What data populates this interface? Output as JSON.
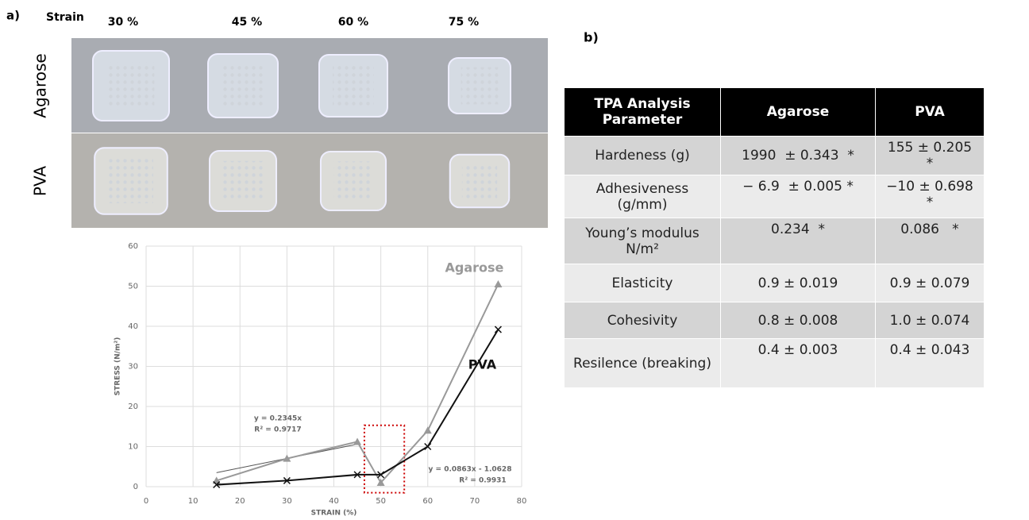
{
  "panel_a": {
    "label": "a)",
    "strain_label": "Strain",
    "strains": [
      "30 %",
      "45 %",
      "60 %",
      "75 %"
    ],
    "rows": [
      "Agarose",
      "PVA"
    ]
  },
  "chart_data": {
    "type": "line",
    "x_label": "STRAIN (%)",
    "y_label": "STRESS (N/m²)",
    "xlim": [
      0,
      80
    ],
    "xticks": [
      0,
      10,
      20,
      30,
      40,
      50,
      60,
      70,
      80
    ],
    "ylim": [
      0,
      60
    ],
    "yticks": [
      0,
      10,
      20,
      30,
      40,
      50,
      60
    ],
    "grid": true,
    "series": [
      {
        "name": "Agarose",
        "color": "#999999",
        "marker": "triangle",
        "x": [
          15,
          30,
          45,
          50,
          60,
          75
        ],
        "values": [
          1.5,
          7,
          11.2,
          1,
          14,
          50.5
        ]
      },
      {
        "name": "PVA",
        "color": "#111111",
        "marker": "x",
        "x": [
          15,
          30,
          45,
          50,
          60,
          75
        ],
        "values": [
          0.5,
          1.5,
          3,
          3,
          10,
          39.2
        ]
      }
    ],
    "trendlines": [
      {
        "color": "#555555",
        "x": [
          15,
          45
        ],
        "values": [
          3.5,
          10.6
        ]
      },
      {
        "color": "#aaaaaa",
        "x": [
          15,
          45
        ],
        "values": [
          0.3,
          2.8
        ]
      }
    ],
    "annotations": [
      "y = 0.2345x",
      "R² = 0.9717",
      "y = 0.0863x - 1.0628",
      "R² = 0.9931"
    ],
    "highlight_box": {
      "x": [
        46.5,
        55
      ],
      "y": [
        -1.5,
        15.3
      ],
      "color": "#cc0000"
    }
  },
  "panel_b": {
    "label": "b)"
  },
  "table": {
    "header": [
      "TPA Analysis Parameter",
      "Agarose",
      "PVA"
    ],
    "rows": [
      [
        "Hardeness (g)",
        "1990  ± 0.343  *",
        "155 ± 0.205 *"
      ],
      [
        "Adhesiveness (g/mm)",
        "− 6.9  ± 0.005 *",
        "−10 ± 0.698 *"
      ],
      [
        "Young’s modulus N/m²",
        "0.234  *",
        "0.086   *"
      ],
      [
        "Elasticity",
        "0.9 ± 0.019",
        "0.9 ± 0.079"
      ],
      [
        "Cohesivity",
        "0.8 ± 0.008",
        "1.0 ± 0.074"
      ],
      [
        "Resilence (breaking)",
        "0.4 ± 0.003",
        "0.4 ± 0.043"
      ]
    ]
  }
}
